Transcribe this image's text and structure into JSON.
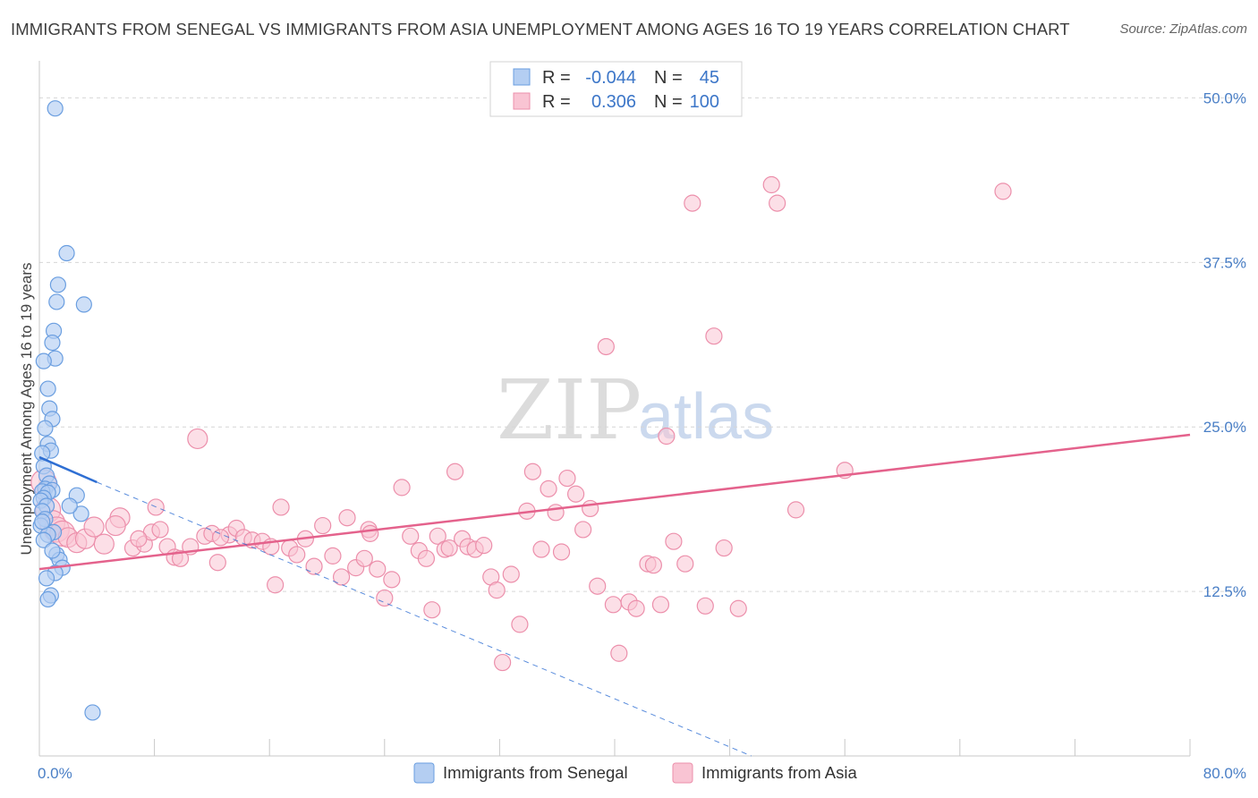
{
  "title": "IMMIGRANTS FROM SENEGAL VS IMMIGRANTS FROM ASIA UNEMPLOYMENT AMONG AGES 16 TO 19 YEARS CORRELATION CHART",
  "source": "Source: ZipAtlas.com",
  "watermark": {
    "zip": "ZIP",
    "atlas": "atlas"
  },
  "colors": {
    "senegal_fill": "#b4cef2",
    "senegal_stroke": "#6a9ee0",
    "senegal_line": "#2f6fd3",
    "asia_fill": "#f9c4d3",
    "asia_stroke": "#ec8fab",
    "asia_line": "#e4628c",
    "tick_text": "#4a7fc6",
    "grid": "#d6d6d6"
  },
  "legend": {
    "rows": [
      {
        "r_label": "R =",
        "r_value": "-0.044",
        "n_label": "N =",
        "n_value": "45"
      },
      {
        "r_label": "R =",
        "r_value": "0.306",
        "n_label": "N =",
        "n_value": "100"
      }
    ]
  },
  "chart_data": {
    "type": "scatter",
    "title": "IMMIGRANTS FROM SENEGAL VS IMMIGRANTS FROM ASIA UNEMPLOYMENT AMONG AGES 16 TO 19 YEARS CORRELATION CHART",
    "xlabel": "",
    "ylabel": "Unemployment Among Ages 16 to 19 years",
    "xlim": [
      0,
      80
    ],
    "ylim": [
      0,
      52
    ],
    "x_tick_labels": [
      "0.0%",
      "80.0%"
    ],
    "y_ticks": [
      12.5,
      25.0,
      37.5,
      50.0
    ],
    "y_tick_labels": [
      "12.5%",
      "25.0%",
      "37.5%",
      "50.0%"
    ],
    "grid": true,
    "legend_position": "top-center",
    "series": [
      {
        "name": "Immigrants from Senegal",
        "r": -0.044,
        "n": 45,
        "trend": {
          "x0": 0,
          "y0": 22.7,
          "x1": 4.0,
          "y1": 20.8,
          "dashed_to_x": 49.5,
          "dashed_to_y": 0
        },
        "points": [
          [
            1.1,
            49.2
          ],
          [
            1.9,
            38.2
          ],
          [
            1.3,
            35.8
          ],
          [
            1.2,
            34.5
          ],
          [
            3.1,
            34.3
          ],
          [
            1.0,
            32.3
          ],
          [
            0.9,
            31.4
          ],
          [
            1.1,
            30.2
          ],
          [
            0.3,
            30.0
          ],
          [
            0.6,
            27.9
          ],
          [
            0.7,
            26.4
          ],
          [
            0.9,
            25.6
          ],
          [
            0.4,
            24.9
          ],
          [
            0.6,
            23.7
          ],
          [
            0.8,
            23.2
          ],
          [
            0.2,
            23.0
          ],
          [
            0.3,
            22.0
          ],
          [
            0.5,
            21.3
          ],
          [
            0.7,
            20.7
          ],
          [
            0.4,
            20.3
          ],
          [
            0.9,
            20.2
          ],
          [
            0.2,
            20.1
          ],
          [
            0.6,
            20.0
          ],
          [
            0.3,
            19.6
          ],
          [
            0.1,
            19.4
          ],
          [
            0.5,
            19.0
          ],
          [
            0.2,
            18.6
          ],
          [
            0.4,
            18.0
          ],
          [
            0.1,
            17.5
          ],
          [
            1.0,
            17.0
          ],
          [
            0.6,
            16.8
          ],
          [
            0.3,
            16.4
          ],
          [
            1.2,
            15.3
          ],
          [
            1.4,
            14.9
          ],
          [
            1.6,
            14.3
          ],
          [
            1.1,
            13.9
          ],
          [
            0.5,
            13.5
          ],
          [
            0.8,
            12.2
          ],
          [
            0.6,
            11.9
          ],
          [
            2.6,
            19.8
          ],
          [
            2.9,
            18.4
          ],
          [
            2.1,
            19.0
          ],
          [
            0.2,
            17.8
          ],
          [
            0.9,
            15.6
          ],
          [
            3.7,
            3.3
          ]
        ]
      },
      {
        "name": "Immigrants from Asia",
        "r": 0.306,
        "n": 100,
        "trend": {
          "x0": 0,
          "y0": 14.2,
          "x1": 80,
          "y1": 24.4
        },
        "points": [
          [
            0.3,
            20.8
          ],
          [
            0.6,
            18.7
          ],
          [
            0.9,
            17.7
          ],
          [
            1.2,
            17.2
          ],
          [
            1.6,
            16.9
          ],
          [
            2.0,
            16.6
          ],
          [
            2.6,
            16.2
          ],
          [
            3.2,
            16.5
          ],
          [
            3.8,
            17.4
          ],
          [
            4.5,
            16.1
          ],
          [
            5.6,
            18.1
          ],
          [
            6.5,
            15.8
          ],
          [
            7.3,
            16.1
          ],
          [
            7.8,
            17.0
          ],
          [
            8.1,
            18.9
          ],
          [
            8.4,
            17.2
          ],
          [
            8.9,
            15.9
          ],
          [
            9.4,
            15.1
          ],
          [
            9.8,
            15.0
          ],
          [
            10.5,
            15.9
          ],
          [
            11.0,
            24.1
          ],
          [
            11.5,
            16.7
          ],
          [
            12.0,
            16.9
          ],
          [
            12.4,
            14.7
          ],
          [
            13.2,
            16.8
          ],
          [
            13.7,
            17.3
          ],
          [
            14.2,
            16.6
          ],
          [
            14.8,
            16.4
          ],
          [
            15.5,
            16.3
          ],
          [
            16.1,
            15.9
          ],
          [
            16.4,
            13.0
          ],
          [
            16.8,
            18.9
          ],
          [
            17.4,
            15.8
          ],
          [
            17.9,
            15.3
          ],
          [
            18.5,
            16.5
          ],
          [
            19.1,
            14.4
          ],
          [
            19.7,
            17.5
          ],
          [
            20.4,
            15.2
          ],
          [
            21.0,
            13.6
          ],
          [
            21.4,
            18.1
          ],
          [
            22.0,
            14.3
          ],
          [
            22.6,
            15.0
          ],
          [
            22.9,
            17.2
          ],
          [
            23.5,
            14.2
          ],
          [
            24.0,
            12.0
          ],
          [
            24.5,
            13.4
          ],
          [
            25.2,
            20.4
          ],
          [
            25.8,
            16.7
          ],
          [
            26.4,
            15.6
          ],
          [
            26.9,
            15.0
          ],
          [
            27.3,
            11.1
          ],
          [
            27.7,
            16.7
          ],
          [
            28.2,
            15.7
          ],
          [
            28.5,
            15.8
          ],
          [
            28.9,
            21.6
          ],
          [
            29.4,
            16.5
          ],
          [
            29.8,
            15.9
          ],
          [
            30.3,
            15.7
          ],
          [
            30.9,
            16.0
          ],
          [
            31.4,
            13.6
          ],
          [
            31.8,
            12.6
          ],
          [
            32.2,
            7.1
          ],
          [
            32.8,
            13.8
          ],
          [
            33.4,
            10.0
          ],
          [
            33.9,
            18.6
          ],
          [
            34.3,
            21.6
          ],
          [
            34.9,
            15.7
          ],
          [
            35.4,
            20.3
          ],
          [
            35.9,
            18.5
          ],
          [
            36.3,
            15.5
          ],
          [
            36.7,
            21.1
          ],
          [
            37.3,
            19.9
          ],
          [
            37.8,
            17.2
          ],
          [
            38.3,
            18.8
          ],
          [
            38.8,
            12.9
          ],
          [
            39.4,
            31.1
          ],
          [
            39.9,
            11.5
          ],
          [
            40.3,
            7.8
          ],
          [
            41.0,
            11.7
          ],
          [
            41.5,
            11.2
          ],
          [
            42.3,
            14.6
          ],
          [
            42.7,
            14.5
          ],
          [
            43.2,
            11.5
          ],
          [
            43.6,
            24.3
          ],
          [
            44.1,
            16.3
          ],
          [
            44.9,
            14.6
          ],
          [
            45.4,
            42.0
          ],
          [
            46.3,
            11.4
          ],
          [
            46.9,
            31.9
          ],
          [
            47.6,
            15.8
          ],
          [
            48.6,
            11.2
          ],
          [
            50.9,
            43.4
          ],
          [
            51.3,
            42.0
          ],
          [
            52.6,
            18.7
          ],
          [
            56.0,
            21.7
          ],
          [
            67.0,
            42.9
          ],
          [
            23.0,
            16.9
          ],
          [
            12.6,
            16.6
          ],
          [
            6.9,
            16.5
          ],
          [
            5.3,
            17.5
          ]
        ]
      }
    ]
  },
  "bottom_legend": [
    {
      "label": "Immigrants from Senegal"
    },
    {
      "label": "Immigrants from Asia"
    }
  ]
}
